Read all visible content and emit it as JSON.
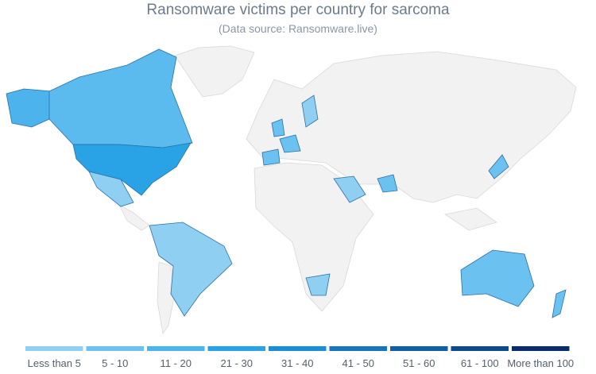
{
  "title": "Ransomware victims per country for sarcoma",
  "subtitle": "(Data source: Ransomware.live)",
  "legend": {
    "items": [
      {
        "label": "Less than 5",
        "color": "#8fd0f2"
      },
      {
        "label": "5 - 10",
        "color": "#6bc1ef"
      },
      {
        "label": "11 - 20",
        "color": "#4cb3ec"
      },
      {
        "label": "21 - 30",
        "color": "#2aa2e6"
      },
      {
        "label": "31 - 40",
        "color": "#1c8cd4"
      },
      {
        "label": "41 - 50",
        "color": "#1675bd"
      },
      {
        "label": "51 - 60",
        "color": "#115ea3"
      },
      {
        "label": "61 - 100",
        "color": "#0c4a8b"
      },
      {
        "label": "More than 100",
        "color": "#0a2c6b"
      }
    ]
  }
}
